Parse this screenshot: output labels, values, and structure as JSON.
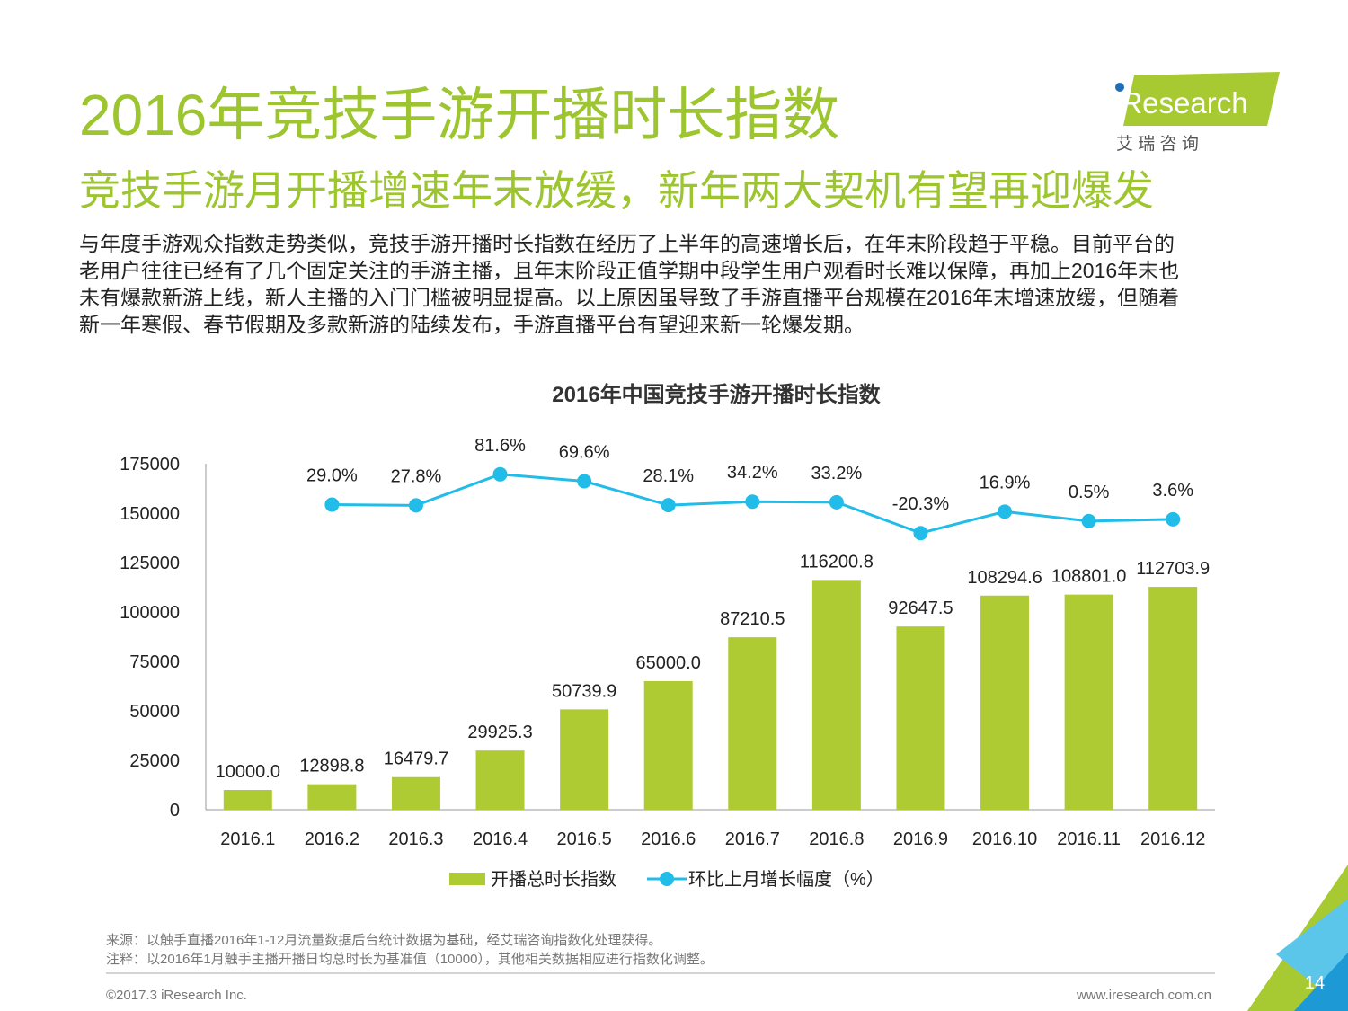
{
  "header": {
    "title": "2016年竞技手游开播时长指数",
    "subtitle": "竞技手游月开播增速年末放缓，新年两大契机有望再迎爆发"
  },
  "logo": {
    "brand": "iResearch",
    "tagline": "艾 瑞 咨 询"
  },
  "body": {
    "lines": [
      "与年度手游观众指数走势类似，竞技手游开播时长指数在经历了上半年的高速增长后，在年末阶段趋于平稳。目前平台的",
      "老用户往往已经有了几个固定关注的手游主播，且年末阶段正值学期中段学生用户观看时长难以保障，再加上2016年末也",
      "未有爆款新游上线，新人主播的入门门槛被明显提高。以上原因虽导致了手游直播平台规模在2016年末增速放缓，但随着",
      "新一年寒假、春节假期及多款新游的陆续发布，手游直播平台有望迎来新一轮爆发期。"
    ]
  },
  "chart_data": {
    "type": "bar",
    "title": "2016年中国竞技手游开播时长指数",
    "categories": [
      "2016.1",
      "2016.2",
      "2016.3",
      "2016.4",
      "2016.5",
      "2016.6",
      "2016.7",
      "2016.8",
      "2016.9",
      "2016.10",
      "2016.11",
      "2016.12"
    ],
    "series": [
      {
        "name": "开播总时长指数",
        "type": "bar",
        "color": "#aecb33",
        "values": [
          10000.0,
          12898.8,
          16479.7,
          29925.3,
          50739.9,
          65000.0,
          87210.5,
          116200.8,
          92647.5,
          108294.6,
          108801.0,
          112703.9
        ],
        "value_labels": [
          "10000.0",
          "12898.8",
          "16479.7",
          "29925.3",
          "50739.9",
          "65000.0",
          "87210.5",
          "116200.8",
          "92647.5",
          "108294.6",
          "108801.0",
          "112703.9"
        ]
      },
      {
        "name": "环比上月增长幅度（%）",
        "type": "line",
        "axis": "y2",
        "color": "#22bce8",
        "values": [
          null,
          29.0,
          27.8,
          81.6,
          69.6,
          28.1,
          34.2,
          33.2,
          -20.3,
          16.9,
          0.5,
          3.6
        ],
        "value_labels": [
          null,
          "29.0%",
          "27.8%",
          "81.6%",
          "69.6%",
          "28.1%",
          "34.2%",
          "33.2%",
          "-20.3%",
          "16.9%",
          "0.5%",
          "3.6%"
        ]
      }
    ],
    "ylim": [
      0,
      175000
    ],
    "yticks": [
      0,
      25000,
      50000,
      75000,
      100000,
      125000,
      150000,
      175000
    ],
    "y2lim": [
      -500,
      100
    ],
    "grid": false,
    "legend": "bottom"
  },
  "notes": [
    "来源：以触手直播2016年1-12月流量数据后台统计数据为基础，经艾瑞咨询指数化处理获得。",
    "注释：以2016年1月触手主播开播日均总时长为基准值（10000），其他相关数据相应进行指数化调整。"
  ],
  "footer": {
    "copyright": "©2017.3 iResearch Inc.",
    "website": "www.iresearch.com.cn",
    "page": "14"
  }
}
